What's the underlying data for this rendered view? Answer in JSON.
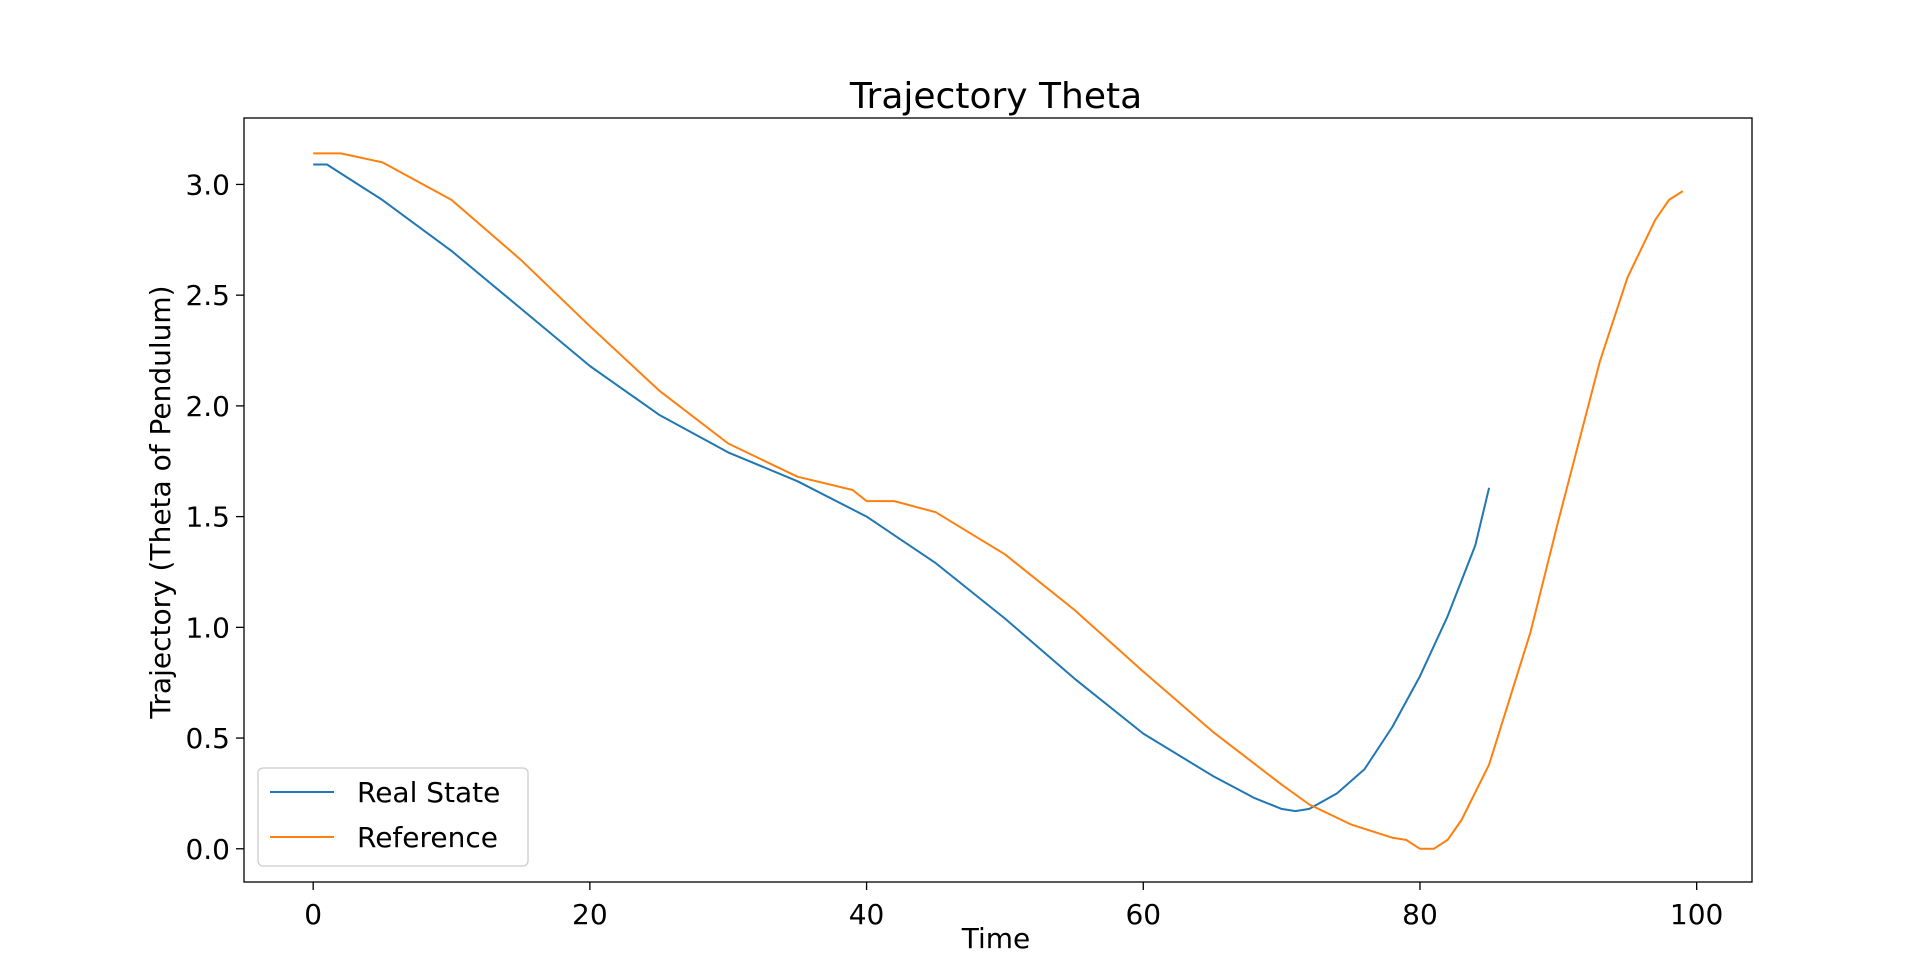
{
  "chart_data": {
    "type": "line",
    "title": "Trajectory Theta",
    "xlabel": "Time",
    "ylabel": "Trajectory (Theta of Pendulum)",
    "xlim": [
      -5,
      104
    ],
    "ylim": [
      -0.15,
      3.3
    ],
    "xticks": [
      0,
      20,
      40,
      60,
      80,
      100
    ],
    "yticks": [
      0.0,
      0.5,
      1.0,
      1.5,
      2.0,
      2.5,
      3.0
    ],
    "xtick_labels": [
      "0",
      "20",
      "40",
      "60",
      "80",
      "100"
    ],
    "ytick_labels": [
      "0.0",
      "0.5",
      "1.0",
      "1.5",
      "2.0",
      "2.5",
      "3.0"
    ],
    "grid": false,
    "legend_position": "lower-left",
    "series": [
      {
        "name": "Real State",
        "color": "#1f77b4",
        "points": [
          [
            0,
            3.09
          ],
          [
            1,
            3.09
          ],
          [
            2,
            3.05
          ],
          [
            5,
            2.93
          ],
          [
            10,
            2.7
          ],
          [
            15,
            2.44
          ],
          [
            20,
            2.18
          ],
          [
            25,
            1.96
          ],
          [
            30,
            1.79
          ],
          [
            35,
            1.66
          ],
          [
            40,
            1.5
          ],
          [
            45,
            1.29
          ],
          [
            50,
            1.04
          ],
          [
            55,
            0.77
          ],
          [
            60,
            0.52
          ],
          [
            65,
            0.33
          ],
          [
            68,
            0.23
          ],
          [
            70,
            0.18
          ],
          [
            71,
            0.17
          ],
          [
            72,
            0.18
          ],
          [
            74,
            0.25
          ],
          [
            76,
            0.36
          ],
          [
            78,
            0.55
          ],
          [
            80,
            0.78
          ],
          [
            82,
            1.05
          ],
          [
            84,
            1.37
          ],
          [
            85,
            1.63
          ]
        ]
      },
      {
        "name": "Reference",
        "color": "#ff7f0e",
        "points": [
          [
            0,
            3.14
          ],
          [
            2,
            3.14
          ],
          [
            5,
            3.1
          ],
          [
            10,
            2.93
          ],
          [
            15,
            2.66
          ],
          [
            20,
            2.36
          ],
          [
            25,
            2.07
          ],
          [
            30,
            1.83
          ],
          [
            35,
            1.68
          ],
          [
            39,
            1.62
          ],
          [
            40,
            1.57
          ],
          [
            42,
            1.57
          ],
          [
            45,
            1.52
          ],
          [
            50,
            1.33
          ],
          [
            55,
            1.08
          ],
          [
            60,
            0.8
          ],
          [
            65,
            0.53
          ],
          [
            70,
            0.29
          ],
          [
            72,
            0.2
          ],
          [
            75,
            0.11
          ],
          [
            78,
            0.05
          ],
          [
            79,
            0.04
          ],
          [
            80,
            0.0
          ],
          [
            81,
            0.0
          ],
          [
            82,
            0.04
          ],
          [
            83,
            0.13
          ],
          [
            85,
            0.38
          ],
          [
            88,
            0.98
          ],
          [
            90,
            1.48
          ],
          [
            93,
            2.2
          ],
          [
            95,
            2.58
          ],
          [
            97,
            2.84
          ],
          [
            98,
            2.93
          ],
          [
            99,
            2.97
          ]
        ]
      }
    ]
  }
}
